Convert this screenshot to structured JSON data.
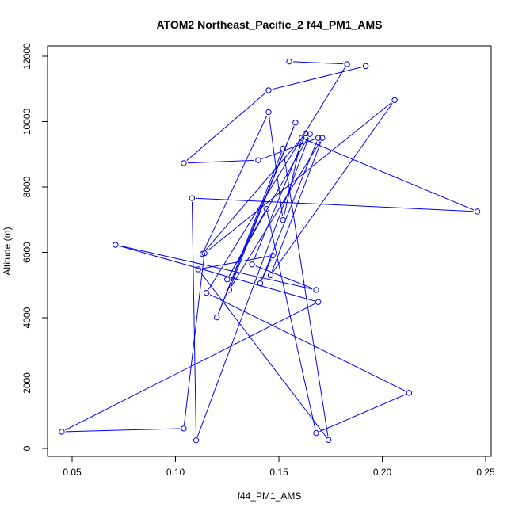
{
  "chart_data": {
    "type": "line",
    "title": "ATOM2 Northeast_Pacific_2 f44_PM1_AMS",
    "xlabel": "f44_PM1_AMS",
    "ylabel": "Altitude (m)",
    "xlim": [
      0.04,
      0.25
    ],
    "ylim": [
      0,
      12000
    ],
    "x_ticks": [
      0.05,
      0.1,
      0.15,
      0.2,
      0.25
    ],
    "x_tick_labels": [
      "0.05",
      "0.10",
      "0.15",
      "0.20",
      "0.25"
    ],
    "y_ticks": [
      0,
      2000,
      4000,
      6000,
      8000,
      10000,
      12000
    ],
    "y_tick_labels": [
      "0",
      "2000",
      "4000",
      "6000",
      "8000",
      "10000",
      "12000"
    ],
    "grid": false,
    "series": [
      {
        "color": "#0000ff",
        "marker": "open-circle",
        "points": [
          {
            "x": 0.155,
            "y": 11840
          },
          {
            "x": 0.183,
            "y": 11760
          },
          {
            "x": 0.115,
            "y": 4760
          },
          {
            "x": 0.213,
            "y": 1700
          },
          {
            "x": 0.168,
            "y": 470
          },
          {
            "x": 0.144,
            "y": 7330
          },
          {
            "x": 0.125,
            "y": 5170
          },
          {
            "x": 0.165,
            "y": 9620
          },
          {
            "x": 0.11,
            "y": 250
          },
          {
            "x": 0.108,
            "y": 7660
          },
          {
            "x": 0.246,
            "y": 7250
          },
          {
            "x": 0.161,
            "y": 9500
          },
          {
            "x": 0.152,
            "y": 6990
          },
          {
            "x": 0.145,
            "y": 10290
          },
          {
            "x": 0.113,
            "y": 5950
          },
          {
            "x": 0.163,
            "y": 9640
          },
          {
            "x": 0.137,
            "y": 5630
          },
          {
            "x": 0.168,
            "y": 4850
          },
          {
            "x": 0.071,
            "y": 6230
          },
          {
            "x": 0.169,
            "y": 4480
          },
          {
            "x": 0.045,
            "y": 510
          },
          {
            "x": 0.104,
            "y": 610
          },
          {
            "x": 0.114,
            "y": 5970
          },
          {
            "x": 0.206,
            "y": 10660
          },
          {
            "x": 0.146,
            "y": 5300
          },
          {
            "x": 0.171,
            "y": 9500
          },
          {
            "x": 0.126,
            "y": 4850
          },
          {
            "x": 0.158,
            "y": 9970
          },
          {
            "x": 0.12,
            "y": 4010
          },
          {
            "x": 0.152,
            "y": 9180
          },
          {
            "x": 0.174,
            "y": 260
          },
          {
            "x": 0.111,
            "y": 5480
          },
          {
            "x": 0.147,
            "y": 5900
          },
          {
            "x": 0.141,
            "y": 5050
          },
          {
            "x": 0.169,
            "y": 9500
          },
          {
            "x": 0.14,
            "y": 8820
          },
          {
            "x": 0.104,
            "y": 8730
          },
          {
            "x": 0.145,
            "y": 10960
          },
          {
            "x": 0.192,
            "y": 11700
          }
        ]
      }
    ]
  }
}
